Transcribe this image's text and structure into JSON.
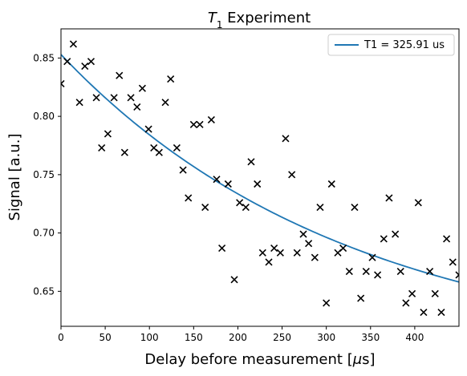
{
  "chart_data": {
    "type": "scatter",
    "title_symbol": "T",
    "title_sub": "1",
    "title_rest": " Experiment",
    "xlabel_prefix": "Delay before measurement [",
    "xlabel_mu": "μ",
    "xlabel_suffix": "s]",
    "ylabel": "Signal [a.u.]",
    "xlim": [
      0,
      450
    ],
    "ylim": [
      0.62,
      0.875
    ],
    "xticks": [
      0,
      50,
      100,
      150,
      200,
      250,
      300,
      350,
      400
    ],
    "xtick_labels": [
      "0",
      "50",
      "100",
      "150",
      "200",
      "250",
      "300",
      "350",
      "400"
    ],
    "yticks": [
      0.65,
      0.7,
      0.75,
      0.8,
      0.85
    ],
    "ytick_labels": [
      "0.65",
      "0.70",
      "0.75",
      "0.80",
      "0.85"
    ],
    "legend_position": "top-right",
    "fit": {
      "name": "T1 = 325.91 us",
      "color": "#1f77b4",
      "T1": 325.91,
      "x0": 0,
      "x1": 450,
      "y_at_0": 0.853,
      "y_at_450": 0.658
    },
    "scatter": {
      "marker": "x",
      "color": "#000000",
      "points": [
        [
          0,
          0.828
        ],
        [
          7,
          0.847
        ],
        [
          14,
          0.862
        ],
        [
          21,
          0.812
        ],
        [
          27,
          0.843
        ],
        [
          34,
          0.847
        ],
        [
          40,
          0.816
        ],
        [
          46,
          0.773
        ],
        [
          53,
          0.785
        ],
        [
          60,
          0.816
        ],
        [
          66,
          0.835
        ],
        [
          72,
          0.769
        ],
        [
          79,
          0.816
        ],
        [
          86,
          0.808
        ],
        [
          92,
          0.824
        ],
        [
          99,
          0.789
        ],
        [
          105,
          0.773
        ],
        [
          111,
          0.769
        ],
        [
          118,
          0.812
        ],
        [
          124,
          0.832
        ],
        [
          131,
          0.773
        ],
        [
          138,
          0.754
        ],
        [
          144,
          0.73
        ],
        [
          150,
          0.793
        ],
        [
          157,
          0.793
        ],
        [
          163,
          0.722
        ],
        [
          170,
          0.797
        ],
        [
          176,
          0.746
        ],
        [
          182,
          0.687
        ],
        [
          189,
          0.742
        ],
        [
          196,
          0.66
        ],
        [
          202,
          0.726
        ],
        [
          209,
          0.722
        ],
        [
          215,
          0.761
        ],
        [
          222,
          0.742
        ],
        [
          228,
          0.683
        ],
        [
          235,
          0.675
        ],
        [
          241,
          0.687
        ],
        [
          248,
          0.683
        ],
        [
          254,
          0.781
        ],
        [
          261,
          0.75
        ],
        [
          267,
          0.683
        ],
        [
          274,
          0.699
        ],
        [
          280,
          0.691
        ],
        [
          287,
          0.679
        ],
        [
          293,
          0.722
        ],
        [
          300,
          0.64
        ],
        [
          306,
          0.742
        ],
        [
          313,
          0.683
        ],
        [
          319,
          0.687
        ],
        [
          326,
          0.667
        ],
        [
          332,
          0.722
        ],
        [
          339,
          0.644
        ],
        [
          345,
          0.667
        ],
        [
          352,
          0.679
        ],
        [
          358,
          0.664
        ],
        [
          365,
          0.695
        ],
        [
          371,
          0.73
        ],
        [
          378,
          0.699
        ],
        [
          384,
          0.667
        ],
        [
          390,
          0.64
        ],
        [
          397,
          0.648
        ],
        [
          404,
          0.726
        ],
        [
          410,
          0.632
        ],
        [
          417,
          0.667
        ],
        [
          423,
          0.648
        ],
        [
          430,
          0.632
        ],
        [
          436,
          0.695
        ],
        [
          443,
          0.675
        ],
        [
          450,
          0.664
        ]
      ]
    }
  }
}
